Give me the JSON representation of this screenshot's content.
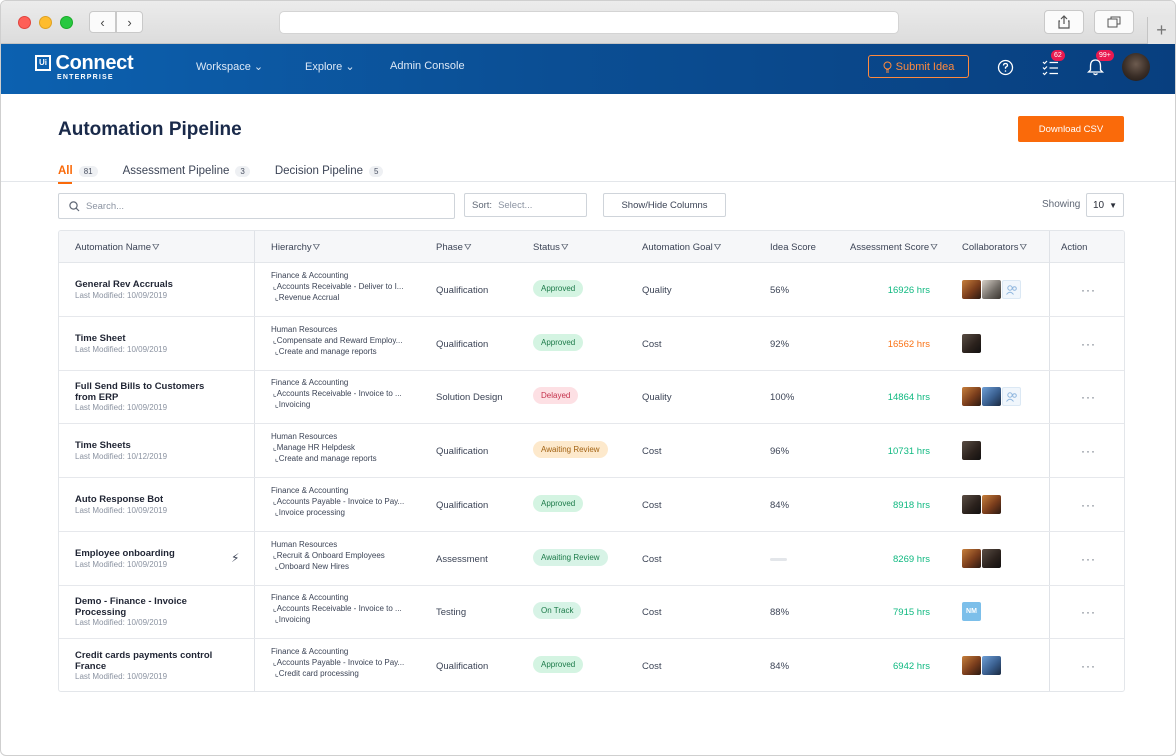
{
  "browser": {
    "back": "‹",
    "forward": "›"
  },
  "header": {
    "logo_mark": "Ui",
    "brand": "Connect",
    "brand_sub": "ENTERPRISE",
    "nav": [
      {
        "label": "Workspace",
        "dropdown": true
      },
      {
        "label": "Explore",
        "dropdown": true
      },
      {
        "label": "Admin Console",
        "dropdown": false
      }
    ],
    "submit_idea": "Submit Idea",
    "tasks_badge": "62",
    "notifications_badge": "99+"
  },
  "page": {
    "title": "Automation Pipeline",
    "download_csv": "Download CSV",
    "tabs": [
      {
        "label": "All",
        "count": "81",
        "active": true
      },
      {
        "label": "Assessment Pipeline",
        "count": "3",
        "active": false
      },
      {
        "label": "Decision Pipeline",
        "count": "5",
        "active": false
      }
    ],
    "search_placeholder": "Search...",
    "sort_label": "Sort:",
    "sort_value": "Select...",
    "show_hide_columns": "Show/Hide Columns",
    "showing_label": "Showing",
    "page_size": "10"
  },
  "table": {
    "columns": {
      "name": "Automation Name",
      "hierarchy": "Hierarchy",
      "phase": "Phase",
      "status": "Status",
      "goal": "Automation Goal",
      "idea": "Idea Score",
      "assess": "Assessment Score",
      "collab": "Collaborators",
      "action": "Action"
    },
    "action_glyph": "···",
    "rows": [
      {
        "name_lines": [
          "General Rev Accruals"
        ],
        "modified": "Last Modified: 10/09/2019",
        "hier": [
          "Finance & Accounting",
          "Accounts Receivable - Deliver to I...",
          "Revenue Accrual"
        ],
        "phase": "Qualification",
        "status": "Approved",
        "status_type": "approved",
        "goal": "Quality",
        "idea": "56%",
        "assess": "16926 hrs",
        "assess_color": "green",
        "collabs": [
          "a1",
          "a2",
          "add"
        ]
      },
      {
        "name_lines": [
          "Time Sheet"
        ],
        "modified": "Last Modified: 10/09/2019",
        "hier": [
          "Human Resources",
          "Compensate and Reward Employ...",
          "Create and manage reports"
        ],
        "phase": "Qualification",
        "status": "Approved",
        "status_type": "approved",
        "goal": "Cost",
        "idea": "92%",
        "assess": "16562 hrs",
        "assess_color": "orange",
        "collabs": [
          "a3"
        ]
      },
      {
        "name_lines": [
          "Full Send Bills to Customers",
          "from ERP"
        ],
        "modified": "Last Modified: 10/09/2019",
        "hier": [
          "Finance & Accounting",
          "Accounts Receivable - Invoice to ...",
          "Invoicing"
        ],
        "phase": "Solution Design",
        "status": "Delayed",
        "status_type": "delayed",
        "goal": "Quality",
        "idea": "100%",
        "assess": "14864 hrs",
        "assess_color": "green",
        "collabs": [
          "a1",
          "a4",
          "add"
        ]
      },
      {
        "name_lines": [
          "Time Sheets"
        ],
        "modified": "Last Modified: 10/12/2019",
        "hier": [
          "Human Resources",
          "Manage HR Helpdesk",
          "Create and manage reports"
        ],
        "phase": "Qualification",
        "status": "Awaiting Review",
        "status_type": "awaiting",
        "goal": "Cost",
        "idea": "96%",
        "assess": "10731 hrs",
        "assess_color": "green",
        "collabs": [
          "a3"
        ]
      },
      {
        "name_lines": [
          "Auto Response Bot"
        ],
        "modified": "Last Modified: 10/09/2019",
        "hier": [
          "Finance & Accounting",
          "Accounts Payable - Invoice to Pay...",
          "Invoice processing"
        ],
        "phase": "Qualification",
        "status": "Approved",
        "status_type": "approved",
        "goal": "Cost",
        "idea": "84%",
        "assess": "8918 hrs",
        "assess_color": "green",
        "collabs": [
          "a3",
          "a1"
        ]
      },
      {
        "name_lines": [
          "Employee onboarding"
        ],
        "modified": "Last Modified: 10/09/2019",
        "bolt": true,
        "hier": [
          "Human Resources",
          "Recruit & Onboard Employees",
          "Onboard New Hires"
        ],
        "phase": "Assessment",
        "status": "Awaiting Review",
        "status_type": "ontrack",
        "goal": "Cost",
        "idea": "",
        "assess": "8269 hrs",
        "assess_color": "green",
        "collabs": [
          "a1",
          "a3"
        ]
      },
      {
        "name_lines": [
          "Demo - Finance - Invoice",
          "Processing"
        ],
        "modified": "Last Modified: 10/09/2019",
        "hier": [
          "Finance & Accounting",
          "Accounts Receivable - Invoice to ...",
          "Invoicing"
        ],
        "phase": "Testing",
        "status": "On Track",
        "status_type": "ontrack",
        "goal": "Cost",
        "idea": "88%",
        "assess": "7915 hrs",
        "assess_color": "green",
        "collabs": [
          "nm"
        ]
      },
      {
        "name_lines": [
          "Credit cards payments control",
          "France"
        ],
        "modified": "Last Modified: 10/09/2019",
        "hier": [
          "Finance & Accounting",
          "Accounts Payable - Invoice to Pay...",
          "Credit card processing"
        ],
        "phase": "Qualification",
        "status": "Approved",
        "status_type": "approved",
        "goal": "Cost",
        "idea": "84%",
        "assess": "6942 hrs",
        "assess_color": "green",
        "collabs": [
          "a1",
          "a4"
        ]
      }
    ],
    "nm_initials": "NM"
  }
}
